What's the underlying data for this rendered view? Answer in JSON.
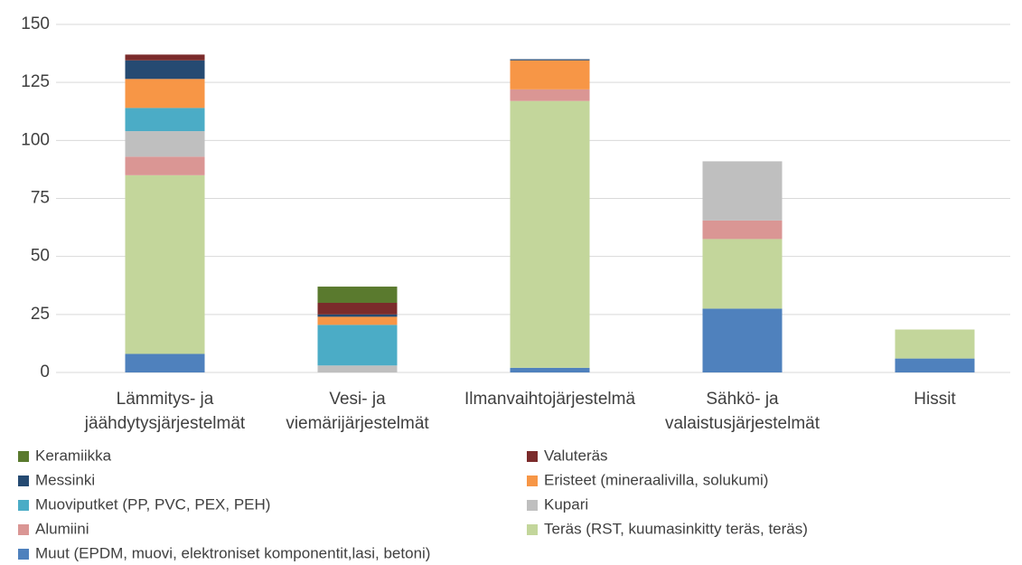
{
  "chart_data": {
    "type": "stacked_bar",
    "categories": [
      [
        "Lämmitys- ja",
        "jäähdytysjärjestelmät"
      ],
      [
        "Vesi- ja",
        "viemärijärjestelmät"
      ],
      [
        "Ilmanvaihtojärjestelmä"
      ],
      [
        "Sähkö- ja",
        "valaistusjärjestelmät"
      ],
      [
        "Hissit"
      ]
    ],
    "series": [
      {
        "name": "Muut (EPDM, muovi, elektroniset komponentit,lasi, betoni)",
        "color": "#4f81bd",
        "values": [
          8,
          0,
          2,
          27.5,
          6
        ]
      },
      {
        "name": "Teräs (RST, kuumasinkitty teräs, teräs)",
        "color": "#c3d69b",
        "values": [
          77,
          0,
          115,
          30,
          12.5
        ]
      },
      {
        "name": "Alumiini",
        "color": "#da9694",
        "values": [
          8,
          0,
          5,
          8,
          0
        ]
      },
      {
        "name": "Kupari",
        "color": "#bfbfbf",
        "values": [
          11,
          3,
          0,
          25.5,
          0
        ]
      },
      {
        "name": "Muoviputket (PP, PVC, PEX, PEH)",
        "color": "#4bacc6",
        "values": [
          10,
          17.5,
          0,
          0,
          0
        ]
      },
      {
        "name": "Eristeet (mineraalivilla, solukumi)",
        "color": "#f79646",
        "values": [
          12.5,
          3.5,
          12.5,
          0,
          0
        ]
      },
      {
        "name": "Messinki",
        "color": "#254a72",
        "values": [
          8,
          1,
          0.5,
          0,
          0
        ]
      },
      {
        "name": "Valuteräs",
        "color": "#7b2b2b",
        "values": [
          2.5,
          5,
          0,
          0,
          0
        ]
      },
      {
        "name": "Keramiikka",
        "color": "#5a7a2e",
        "values": [
          0,
          7,
          0,
          0,
          0
        ]
      }
    ],
    "ylim": [
      0,
      150
    ],
    "yticks": [
      0,
      25,
      50,
      75,
      100,
      125,
      150
    ],
    "grid": true
  }
}
